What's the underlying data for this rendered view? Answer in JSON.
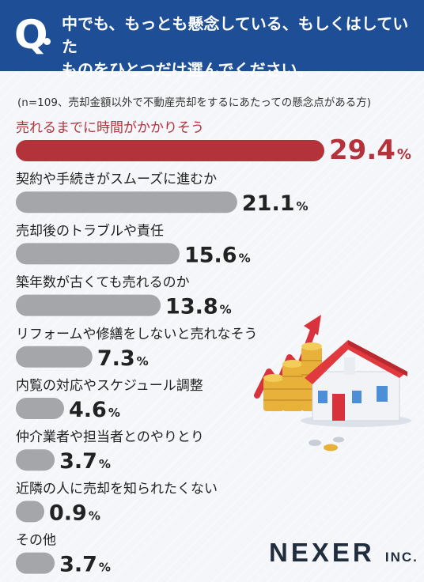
{
  "header": {
    "q_mark": "Q",
    "question": "中でも、もっとも懸念している、もしくはしていた\nものをひとつだけ選んでください。"
  },
  "note": "(n=109、売却金額以外で不動産売却をするにあたっての懸念点がある方)",
  "logo": {
    "name": "NEXER",
    "suffix": "INC."
  },
  "colors": {
    "header_bg": "#1d4e96",
    "highlight": "#b4333b",
    "bar": "#a4a6aa",
    "value_text": "#222222"
  },
  "chart_data": {
    "type": "bar",
    "orientation": "horizontal",
    "unit": "%",
    "categories": [
      "売れるまでに時間がかかりそう",
      "契約や手続きがスムーズに進むか",
      "売却後のトラブルや責任",
      "築年数が古くても売れるのか",
      "リフォームや修繕をしないと売れなそう",
      "内覧の対応やスケジュール調整",
      "仲介業者や担当者とのやりとり",
      "近隣の人に売却を知られたくない",
      "その他"
    ],
    "values": [
      29.4,
      21.1,
      15.6,
      13.8,
      7.3,
      4.6,
      3.7,
      0.9,
      3.7
    ],
    "value_labels": [
      "29.4",
      "21.1",
      "15.6",
      "13.8",
      "7.3",
      "4.6",
      "3.7",
      "0.9",
      "3.7"
    ],
    "highlight_index": 0
  }
}
